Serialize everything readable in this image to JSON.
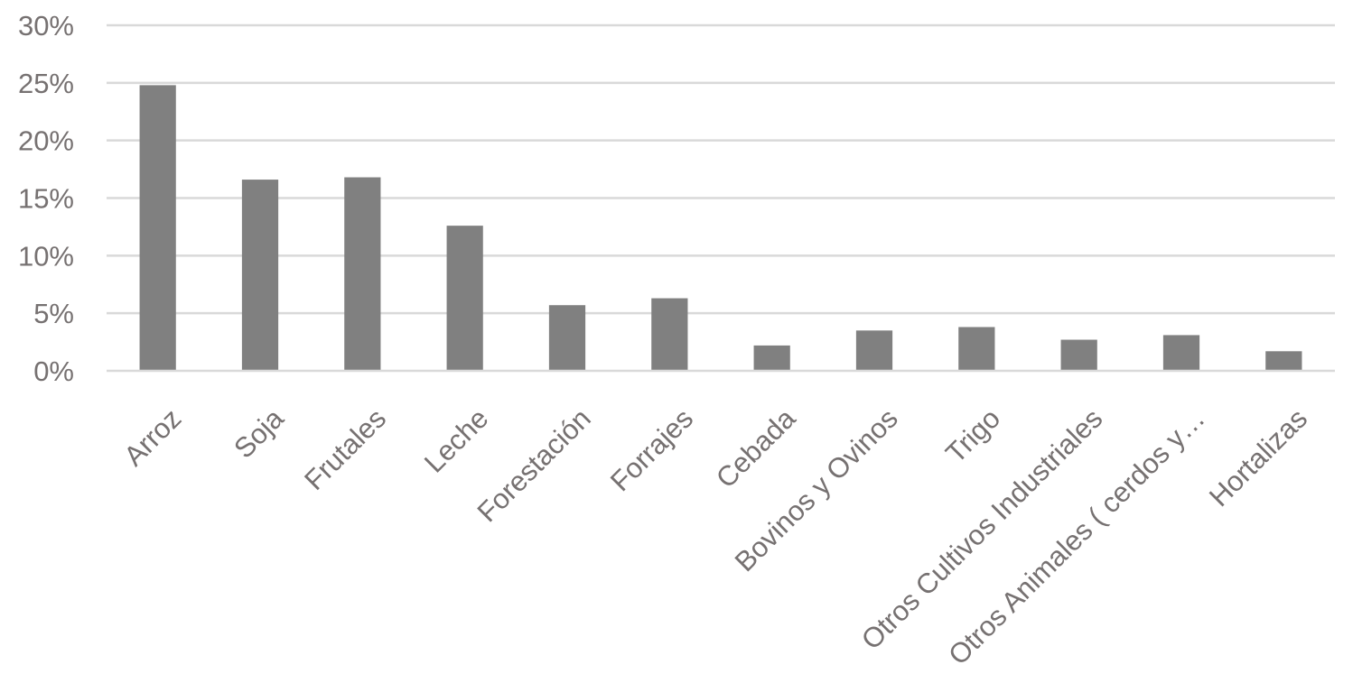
{
  "chart_data": {
    "type": "bar",
    "title": "",
    "xlabel": "",
    "ylabel": "",
    "categories": [
      "Arroz",
      "Soja",
      "Frutales",
      "Leche",
      "Forestación",
      "Forrajes",
      "Cebada",
      "Bovinos y Ovinos",
      "Trigo",
      "Otros Cultivos Industriales",
      "Otros Animales ( cerdos y…",
      "Hortalizas"
    ],
    "values": [
      24.8,
      16.6,
      16.8,
      12.6,
      5.7,
      6.3,
      2.2,
      3.5,
      3.8,
      2.7,
      3.1,
      1.7
    ],
    "ylim": [
      0,
      30
    ],
    "yticks": [
      0,
      5,
      10,
      15,
      20,
      25,
      30
    ],
    "ytick_labels": [
      "0%",
      "5%",
      "10%",
      "15%",
      "20%",
      "25%",
      "30%"
    ],
    "grid": true,
    "legend": "none",
    "bar_color": "#808080",
    "grid_color": "#d9d9d9",
    "text_color": "#767171"
  }
}
